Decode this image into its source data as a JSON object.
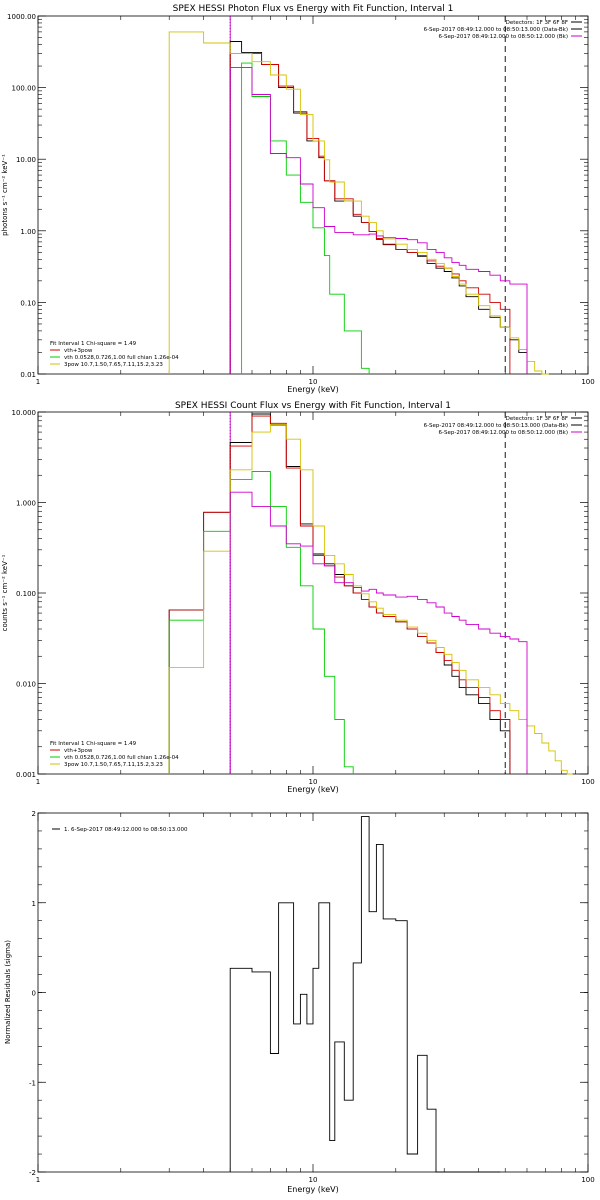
{
  "colors": {
    "black": "#000000",
    "red": "#d00000",
    "green": "#00cc00",
    "yellow": "#d6c000",
    "magenta": "#cc00cc"
  },
  "chart_data": [
    {
      "type": "line",
      "title": "SPEX HESSI Photon Flux vs Energy with Fit Function, Interval 1",
      "xlabel": "Energy (keV)",
      "ylabel": "photons s⁻¹ cm⁻² keV⁻¹",
      "xscale": "log",
      "yscale": "log",
      "xlim": [
        1,
        100
      ],
      "ylim": [
        0.01,
        1000
      ],
      "x_ticks": [
        1,
        10,
        100
      ],
      "x_tick_labels": [
        "1",
        "10",
        "100"
      ],
      "y_ticks": [
        0.01,
        0.1,
        1,
        10,
        100,
        1000
      ],
      "y_tick_labels": [
        "0.01",
        "0.10",
        "1.00",
        "10.00",
        "100.00",
        "1000.00"
      ],
      "vlines": [
        {
          "x": 5.0,
          "style": "dotted",
          "color": "black"
        },
        {
          "x": 5.0,
          "style": "solid",
          "color": "magenta"
        },
        {
          "x": 50.0,
          "style": "dashed",
          "color": "black"
        }
      ],
      "info_lines": [
        "Detectors: 1F 3F 6F 8F",
        "6-Sep-2017 08:49:12.000 to 08:50:13.000 (Data-Bk)",
        "6-Sep-2017 08:49:12.000 to 08:50:12.000 (Bk)"
      ],
      "info_colors": [
        "black",
        "black",
        "magenta"
      ],
      "legend_lines": [
        "Fit Interval  1    Chi-square = 1.49",
        "vth+3pow",
        "vth 0.0528,0.726,1.00  full chian 1.26e-04",
        "3pow 10.7,1.50,7.65,7.11,15.2,3.23"
      ],
      "legend_colors": [
        "black",
        "red",
        "green",
        "yellow"
      ],
      "edges": [
        3,
        4,
        5,
        5.5,
        6,
        6.5,
        7,
        7.5,
        8,
        8.5,
        9,
        9.5,
        10,
        10.5,
        11,
        11.5,
        12,
        13,
        14,
        15,
        16,
        17,
        18,
        20,
        22,
        24,
        26,
        28,
        30,
        32,
        34,
        36,
        40,
        44,
        48,
        52,
        56,
        60,
        64,
        68,
        72
      ],
      "series": [
        {
          "name": "data",
          "color": "black",
          "x_start": 5,
          "x_end": 50,
          "values": [
            440,
            310,
            310,
            210,
            210,
            100,
            100,
            44,
            44,
            18,
            18,
            10.5,
            5,
            5,
            2.6,
            2.6,
            1.6,
            1.3,
            0.98,
            0.76,
            0.64,
            0.55,
            0.5,
            0.44,
            0.35,
            0.3,
            0.27,
            0.22,
            0.17,
            0.12,
            0.08,
            0.062,
            0.045,
            0.03,
            0.02
          ]
        },
        {
          "name": "vth+3pow",
          "color": "red",
          "x_start": 5,
          "x_end": 44,
          "values": [
            300,
            300,
            300,
            210,
            210,
            105,
            105,
            46,
            46,
            19.5,
            19.5,
            11,
            5,
            5,
            2.8,
            2.8,
            1.7,
            1.3,
            0.98,
            0.78,
            0.65,
            0.55,
            0.5,
            0.45,
            0.38,
            0.32,
            0.3,
            0.25,
            0.2,
            0.16,
            0.13,
            0.1,
            0.08
          ]
        },
        {
          "name": "vth",
          "color": "green",
          "x_start": 5.5,
          "x_end": 12,
          "values": [
            220,
            75,
            75,
            18,
            18,
            6,
            6,
            2.5,
            2.5,
            1.1,
            1.1,
            0.45,
            0.13,
            0.13,
            0.04,
            0.04,
            0.012
          ]
        },
        {
          "name": "3pow",
          "color": "yellow",
          "x_start": 3,
          "x_end": 72,
          "values": [
            600,
            420,
            300,
            300,
            230,
            230,
            150,
            150,
            95,
            95,
            42,
            42,
            18,
            18,
            9.8,
            4.8,
            4.8,
            2.6,
            2.6,
            1.6,
            1.3,
            1.0,
            0.77,
            0.65,
            0.55,
            0.5,
            0.4,
            0.35,
            0.3,
            0.23,
            0.18,
            0.13,
            0.09,
            0.065,
            0.045,
            0.032,
            0.022,
            0.015,
            0.011,
            0.008
          ]
        },
        {
          "name": "background",
          "color": "magenta",
          "x_start": 5,
          "x_end": 50,
          "values": [
            190,
            190,
            80,
            80,
            12,
            12,
            10.5,
            10.5,
            4.5,
            4.5,
            2.1,
            2.1,
            1.15,
            1.15,
            0.95,
            0.95,
            0.88,
            0.88,
            0.9,
            0.85,
            0.8,
            0.78,
            0.75,
            0.68,
            0.55,
            0.5,
            0.42,
            0.36,
            0.33,
            0.29,
            0.27,
            0.24,
            0.2,
            0.18,
            0.18
          ]
        }
      ]
    },
    {
      "type": "line",
      "title": "SPEX HESSI Count Flux vs Energy with Fit Function, Interval 1",
      "xlabel": "Energy (keV)",
      "ylabel": "counts s⁻¹ cm⁻² keV⁻¹",
      "xscale": "log",
      "yscale": "log",
      "xlim": [
        1,
        100
      ],
      "ylim": [
        0.001,
        10
      ],
      "x_ticks": [
        1,
        10,
        100
      ],
      "x_tick_labels": [
        "1",
        "10",
        "100"
      ],
      "y_ticks": [
        0.001,
        0.01,
        0.1,
        1,
        10
      ],
      "y_tick_labels": [
        "0.001",
        "0.010",
        "0.100",
        "1.000",
        "10.000"
      ],
      "vlines": [
        {
          "x": 5.0,
          "style": "dotted",
          "color": "black"
        },
        {
          "x": 5.0,
          "style": "solid",
          "color": "magenta"
        },
        {
          "x": 50.0,
          "style": "dashed",
          "color": "black"
        }
      ],
      "info_lines": [
        "Detectors: 1F 3F 6F 8F",
        "6-Sep-2017 08:49:12.000 to 08:50:13.000 (Data-Bk)",
        "6-Sep-2017 08:49:12.000 to 08:50:12.000 (Bk)"
      ],
      "info_colors": [
        "black",
        "black",
        "magenta"
      ],
      "legend_lines": [
        "Fit Interval  1    Chi-square = 1.49",
        "vth+3pow",
        "vth 0.0528,0.726,1.00  full chian 1.26e-04",
        "3pow 10.7,1.50,7.65,7.11,15.2,3.23"
      ],
      "legend_colors": [
        "black",
        "red",
        "green",
        "yellow"
      ],
      "edges": [
        3,
        4,
        5,
        5.5,
        6,
        6.5,
        7,
        7.5,
        8,
        8.5,
        9,
        9.5,
        10,
        10.5,
        11,
        11.5,
        12,
        13,
        14,
        15,
        16,
        17,
        18,
        20,
        22,
        24,
        26,
        28,
        30,
        32,
        34,
        36,
        40,
        44,
        48,
        52,
        56,
        60,
        64,
        68,
        72,
        76,
        80,
        84,
        88
      ],
      "series": [
        {
          "name": "data",
          "color": "black",
          "x_start": 3,
          "x_end": 50,
          "values": [
            0.065,
            0.78,
            4.6,
            4.6,
            9.5,
            9.5,
            7.2,
            7.2,
            2.5,
            2.5,
            0.58,
            0.58,
            0.27,
            0.27,
            0.21,
            0.21,
            0.16,
            0.12,
            0.1,
            0.085,
            0.07,
            0.06,
            0.055,
            0.048,
            0.04,
            0.033,
            0.028,
            0.022,
            0.016,
            0.012,
            0.009,
            0.0075,
            0.006,
            0.004,
            0.003
          ]
        },
        {
          "name": "vth+3pow",
          "color": "red",
          "x_start": 3,
          "x_end": 50,
          "values": [
            0.065,
            0.78,
            4.2,
            4.2,
            9.0,
            9.0,
            7.5,
            7.5,
            2.4,
            2.4,
            0.55,
            0.55,
            0.26,
            0.26,
            0.2,
            0.2,
            0.15,
            0.12,
            0.1,
            0.085,
            0.07,
            0.06,
            0.055,
            0.048,
            0.04,
            0.033,
            0.028,
            0.022,
            0.018,
            0.014,
            0.011,
            0.009,
            0.007,
            0.005,
            0.004
          ]
        },
        {
          "name": "vth",
          "color": "green",
          "x_start": 3,
          "x_end": 13,
          "values": [
            0.05,
            0.48,
            1.8,
            1.8,
            2.2,
            2.2,
            0.9,
            0.9,
            0.32,
            0.32,
            0.12,
            0.12,
            0.04,
            0.04,
            0.012,
            0.012,
            0.004,
            0.0012
          ]
        },
        {
          "name": "3pow",
          "color": "yellow",
          "x_start": 3,
          "x_end": 88,
          "values": [
            0.015,
            0.29,
            2.3,
            2.3,
            6.0,
            6.0,
            7.3,
            7.3,
            5.0,
            5.0,
            2.3,
            2.3,
            0.55,
            0.55,
            0.26,
            0.26,
            0.21,
            0.16,
            0.12,
            0.098,
            0.08,
            0.068,
            0.058,
            0.05,
            0.042,
            0.036,
            0.03,
            0.025,
            0.021,
            0.017,
            0.014,
            0.011,
            0.009,
            0.0075,
            0.006,
            0.005,
            0.004,
            0.0034,
            0.0028,
            0.0022,
            0.0018,
            0.0014,
            0.0011,
            0.0009
          ]
        },
        {
          "name": "background",
          "color": "magenta",
          "x_start": 5,
          "x_end": 50,
          "values": [
            1.3,
            1.3,
            0.9,
            0.9,
            0.55,
            0.55,
            0.35,
            0.35,
            0.33,
            0.33,
            0.21,
            0.21,
            0.2,
            0.2,
            0.13,
            0.13,
            0.115,
            0.105,
            0.11,
            0.1,
            0.095,
            0.09,
            0.092,
            0.085,
            0.078,
            0.07,
            0.06,
            0.055,
            0.05,
            0.045,
            0.04,
            0.036,
            0.033,
            0.031,
            0.029
          ]
        }
      ]
    },
    {
      "type": "line",
      "title": "",
      "xlabel": "Energy (keV)",
      "ylabel": "Normalized Residuals (sigma)",
      "xscale": "log",
      "yscale": "linear",
      "xlim": [
        1,
        100
      ],
      "ylim": [
        -2,
        2
      ],
      "x_ticks": [
        1,
        10,
        100
      ],
      "x_tick_labels": [
        "1",
        "10",
        "100"
      ],
      "y_ticks": [
        -2,
        -1,
        0,
        1,
        2
      ],
      "y_tick_labels": [
        "-2",
        "-1",
        "0",
        "1",
        "2"
      ],
      "legend_lines": [
        "1.  6-Sep-2017 08:49:12.000 to 08:50:13.000"
      ],
      "legend_colors": [
        "black"
      ],
      "edges": [
        5,
        5.5,
        6,
        6.5,
        7,
        7.5,
        8,
        8.5,
        9,
        9.5,
        10,
        10.5,
        11,
        11.5,
        12,
        13,
        14,
        15,
        16,
        17,
        18,
        20,
        22,
        24,
        26,
        28,
        30,
        32,
        34,
        36,
        40,
        44,
        48
      ],
      "series": [
        {
          "name": "residuals",
          "color": "black",
          "x_start": 5,
          "x_end": 48,
          "values": [
            0.27,
            0.27,
            0.23,
            0.23,
            -0.68,
            1.0,
            1.0,
            -0.35,
            -0.02,
            -0.35,
            0.27,
            1.0,
            1.0,
            -1.65,
            -0.55,
            -1.2,
            0.33,
            1.96,
            0.9,
            1.65,
            0.82,
            0.8,
            -1.8,
            -0.7,
            -1.3,
            -2.0,
            -2.0,
            -2.0,
            -2.0,
            -2.0,
            -2.0,
            -2.0
          ]
        }
      ]
    }
  ]
}
